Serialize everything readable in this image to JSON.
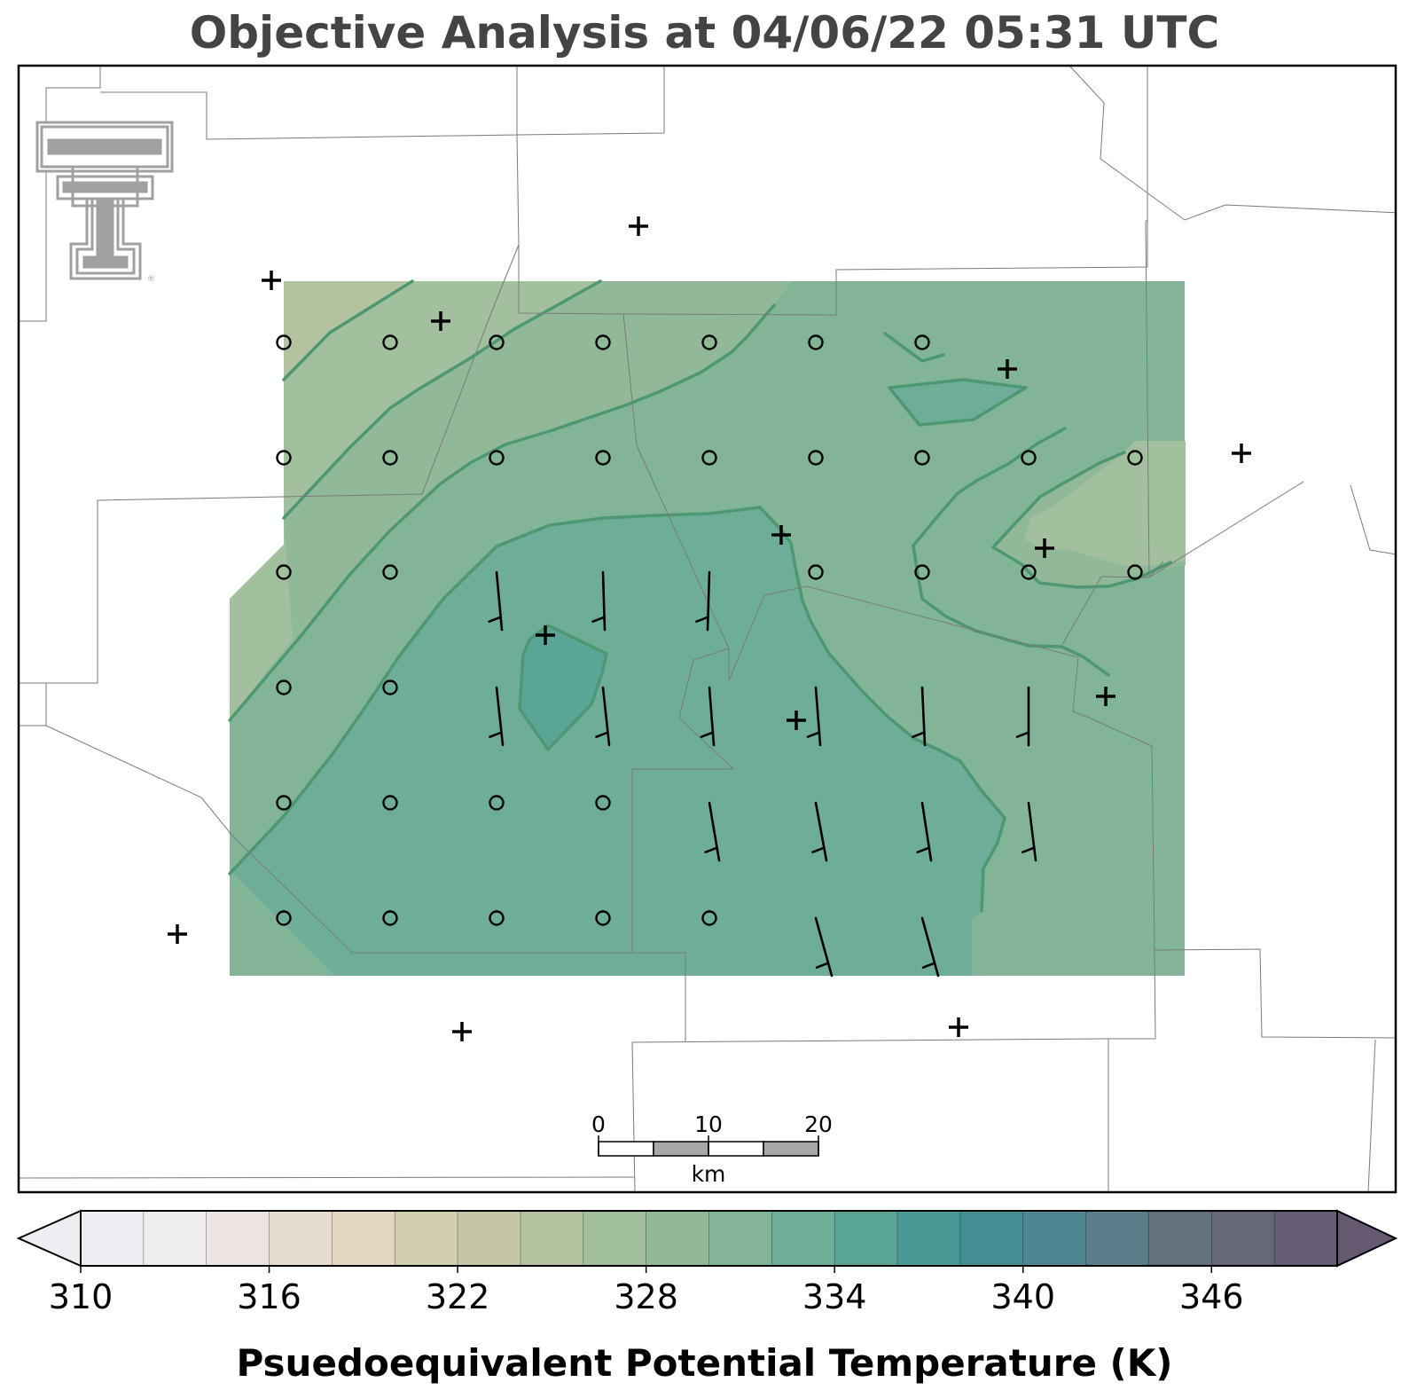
{
  "title": "Objective Analysis at 04/06/22 05:31 UTC",
  "colorbar": {
    "label": "Psuedoequivalent Potential Temperature (K)",
    "min": 310,
    "max": 350,
    "step": 2,
    "ticks": [
      "310",
      "316",
      "322",
      "328",
      "334",
      "340",
      "346"
    ],
    "extend": "both",
    "colors": [
      "#efedf2",
      "#efeced",
      "#ebe4e0",
      "#e6dbcf",
      "#e3d7c0",
      "#d4ceb0",
      "#c4c6a6",
      "#b3c3a0",
      "#a2c09d",
      "#91b997",
      "#82b498",
      "#6eae98",
      "#5aa596",
      "#4b9995",
      "#468d94",
      "#4f8692",
      "#5a7d8a",
      "#63717f",
      "#666879",
      "#665e76"
    ],
    "under_color": "#efedf2",
    "over_color": "#665a72"
  },
  "scale_bar": {
    "labels": [
      "0",
      "10",
      "20"
    ],
    "unit": "km"
  },
  "logo": {
    "name": "texas-tech-double-t-logo",
    "color": "#a0a0a0",
    "mark": "®"
  },
  "map": {
    "fill_levels": [
      {
        "level": "322-324",
        "color": "#b3c3a0"
      },
      {
        "level": "324-326",
        "color": "#a2c09d"
      },
      {
        "level": "326-328",
        "color": "#91b997"
      },
      {
        "level": "328-330",
        "color": "#82b498"
      },
      {
        "level": "330-332",
        "color": "#6eae98"
      },
      {
        "level": "332-334",
        "color": "#5aa596"
      }
    ],
    "contour_color": "#4d9872",
    "station_marker": "+",
    "calm_marker": "circle",
    "barb_color": "#000000"
  }
}
